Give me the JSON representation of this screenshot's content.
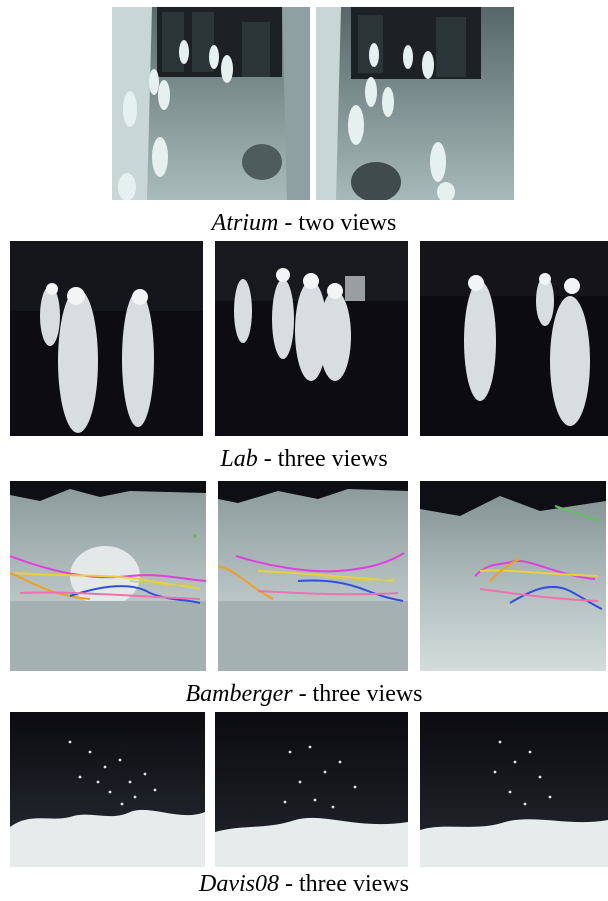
{
  "figure": {
    "groups": [
      {
        "dataset": "Atrium",
        "suffix": " - two views",
        "views": 2
      },
      {
        "dataset": "Lab",
        "suffix": " - three views",
        "views": 3
      },
      {
        "dataset": "Bamberger",
        "suffix": " - three views",
        "views": 3
      },
      {
        "dataset": "Davis08",
        "suffix": " - three views",
        "views": 3
      }
    ],
    "colors": {
      "thermal_dark": "#0b0b12",
      "thermal_mid": "#7f8e92",
      "thermal_light": "#c9d6d4",
      "tracks": [
        "#e040e0",
        "#e8d040",
        "#f0a020",
        "#3050e0",
        "#f070b0",
        "#60c060",
        "#c8c878"
      ]
    }
  }
}
